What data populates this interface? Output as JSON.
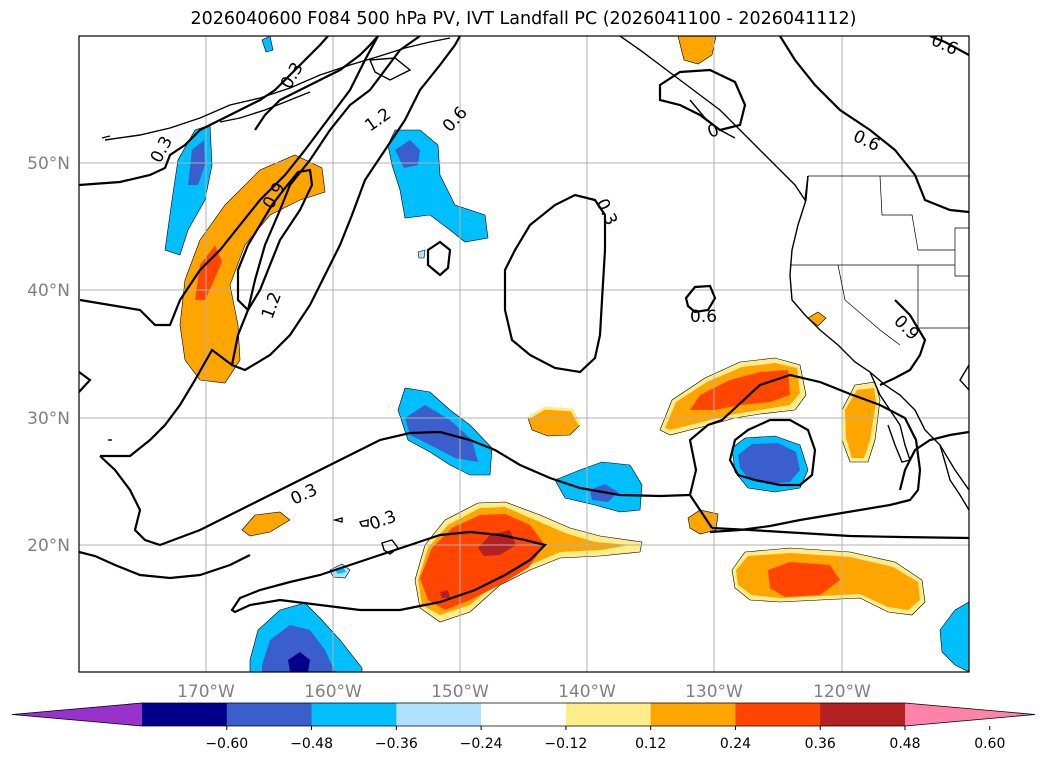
{
  "title": "2026040600 F084 500 hPa PV, IVT Landfall PC (2026041100 - 2026041112)",
  "axes": {
    "lon_ticks": [
      "170°W",
      "160°W",
      "150°W",
      "140°W",
      "130°W",
      "120°W"
    ],
    "lat_ticks": [
      "50°N",
      "40°N",
      "30°N",
      "20°N"
    ]
  },
  "colorbar": {
    "ticks": [
      "−0.60",
      "−0.48",
      "−0.36",
      "−0.24",
      "−0.12",
      "0.12",
      "0.24",
      "0.36",
      "0.48",
      "0.60"
    ],
    "colors": [
      "#9932cc",
      "#00008b",
      "#3a5fcd",
      "#00bfff",
      "#b0e2ff",
      "#ffffff",
      "#ffec8b",
      "#ffa500",
      "#ff4500",
      "#b22222",
      "#ff82ab"
    ]
  },
  "contour_labels": {
    "l1": "0.3",
    "l2": "0.3",
    "l3": "1.2",
    "l4": "0.6",
    "l5": "0.9",
    "l6": "1.2",
    "l7": "0.3",
    "l8": "0.6",
    "l9": "0.6",
    "l10": "0.9",
    "l11": "0.6",
    "l12": "0.3",
    "l13": "0.3",
    "l14": "0"
  }
}
